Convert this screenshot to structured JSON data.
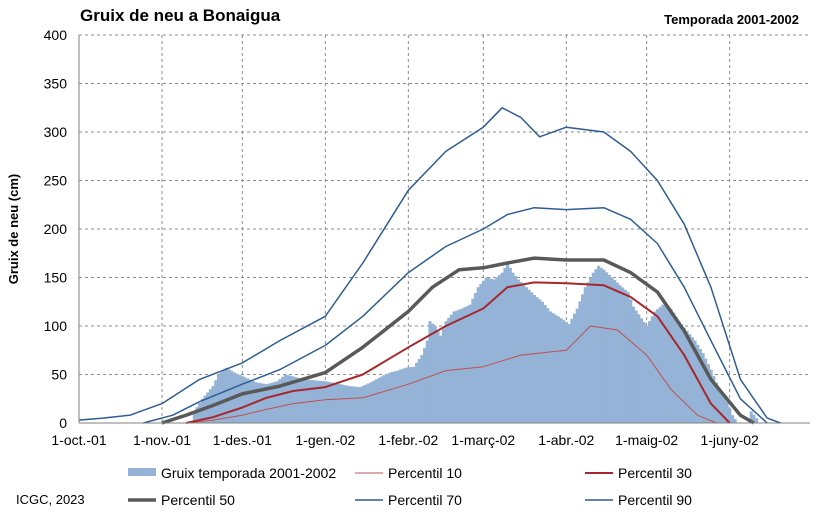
{
  "header": {
    "title": "Gruix de neu a Bonaigua",
    "season": "Temporada 2001-2002",
    "credit": "ICGC, 2023"
  },
  "chart_data": {
    "type": "area",
    "title": "Gruix de neu a Bonaigua",
    "subtitle": "Temporada 2001-2002",
    "ylabel": "Gruix de neu (cm)",
    "xlabel": "",
    "ylim": [
      0,
      400
    ],
    "yticks": [
      0,
      50,
      100,
      150,
      200,
      250,
      300,
      350,
      400
    ],
    "xlim": [
      "2001-10-01",
      "2002-07-01"
    ],
    "xticks": [
      {
        "date": "2001-10-01",
        "label": "1-oct.-01"
      },
      {
        "date": "2001-11-01",
        "label": "1-nov.-01"
      },
      {
        "date": "2001-12-01",
        "label": "1-des.-01"
      },
      {
        "date": "2002-01-01",
        "label": "1-gen.-02"
      },
      {
        "date": "2002-02-01",
        "label": "1-febr.-02"
      },
      {
        "date": "2002-03-01",
        "label": "1-març-02"
      },
      {
        "date": "2002-04-01",
        "label": "1-abr.-02"
      },
      {
        "date": "2002-05-01",
        "label": "1-maig-02"
      },
      {
        "date": "2002-06-01",
        "label": "1-juny-02"
      }
    ],
    "grid": true,
    "legend_position": "bottom",
    "series": [
      {
        "name": "Gruix temporada 2001-2002",
        "kind": "bars",
        "color": "#95b3d7",
        "points": [
          [
            "2001-11-12",
            0
          ],
          [
            "2001-11-13",
            12
          ],
          [
            "2001-11-16",
            25
          ],
          [
            "2001-11-20",
            38
          ],
          [
            "2001-11-22",
            50
          ],
          [
            "2001-11-25",
            57
          ],
          [
            "2001-11-28",
            52
          ],
          [
            "2001-12-02",
            47
          ],
          [
            "2001-12-06",
            42
          ],
          [
            "2001-12-10",
            40
          ],
          [
            "2001-12-14",
            43
          ],
          [
            "2001-12-17",
            50
          ],
          [
            "2001-12-20",
            48
          ],
          [
            "2001-12-24",
            45
          ],
          [
            "2001-12-28",
            44
          ],
          [
            "2002-01-01",
            43
          ],
          [
            "2002-01-05",
            41
          ],
          [
            "2002-01-10",
            38
          ],
          [
            "2002-01-14",
            37
          ],
          [
            "2002-01-18",
            42
          ],
          [
            "2002-01-22",
            48
          ],
          [
            "2002-01-25",
            52
          ],
          [
            "2002-01-28",
            54
          ],
          [
            "2002-01-31",
            57
          ],
          [
            "2002-02-03",
            58
          ],
          [
            "2002-02-06",
            70
          ],
          [
            "2002-02-08",
            85
          ],
          [
            "2002-02-09",
            105
          ],
          [
            "2002-02-11",
            100
          ],
          [
            "2002-02-13",
            90
          ],
          [
            "2002-02-15",
            105
          ],
          [
            "2002-02-18",
            115
          ],
          [
            "2002-02-21",
            118
          ],
          [
            "2002-02-24",
            122
          ],
          [
            "2002-02-27",
            140
          ],
          [
            "2002-03-02",
            150
          ],
          [
            "2002-03-05",
            148
          ],
          [
            "2002-03-08",
            155
          ],
          [
            "2002-03-10",
            165
          ],
          [
            "2002-03-12",
            155
          ],
          [
            "2002-03-14",
            148
          ],
          [
            "2002-03-17",
            140
          ],
          [
            "2002-03-20",
            132
          ],
          [
            "2002-03-23",
            125
          ],
          [
            "2002-03-26",
            115
          ],
          [
            "2002-03-30",
            108
          ],
          [
            "2002-04-02",
            102
          ],
          [
            "2002-04-05",
            118
          ],
          [
            "2002-04-08",
            140
          ],
          [
            "2002-04-11",
            155
          ],
          [
            "2002-04-13",
            162
          ],
          [
            "2002-04-15",
            158
          ],
          [
            "2002-04-18",
            150
          ],
          [
            "2002-04-21",
            142
          ],
          [
            "2002-04-24",
            135
          ],
          [
            "2002-04-26",
            120
          ],
          [
            "2002-04-28",
            112
          ],
          [
            "2002-05-01",
            100
          ],
          [
            "2002-05-04",
            115
          ],
          [
            "2002-05-07",
            122
          ],
          [
            "2002-05-10",
            118
          ],
          [
            "2002-05-13",
            105
          ],
          [
            "2002-05-16",
            95
          ],
          [
            "2002-05-19",
            85
          ],
          [
            "2002-05-22",
            72
          ],
          [
            "2002-05-25",
            55
          ],
          [
            "2002-05-28",
            35
          ],
          [
            "2002-05-31",
            22
          ],
          [
            "2002-06-02",
            8
          ],
          [
            "2002-06-04",
            0
          ],
          [
            "2002-06-08",
            0
          ],
          [
            "2002-06-09",
            12
          ],
          [
            "2002-06-11",
            5
          ],
          [
            "2002-06-12",
            0
          ]
        ]
      },
      {
        "name": "Percentil 10",
        "kind": "line",
        "color": "#c0504d",
        "width": 1,
        "points": [
          [
            "2001-11-10",
            0
          ],
          [
            "2001-11-20",
            3
          ],
          [
            "2001-12-01",
            8
          ],
          [
            "2001-12-10",
            14
          ],
          [
            "2001-12-20",
            20
          ],
          [
            "2002-01-01",
            24
          ],
          [
            "2002-01-15",
            26
          ],
          [
            "2002-02-01",
            40
          ],
          [
            "2002-02-15",
            54
          ],
          [
            "2002-03-01",
            58
          ],
          [
            "2002-03-15",
            70
          ],
          [
            "2002-04-01",
            75
          ],
          [
            "2002-04-10",
            100
          ],
          [
            "2002-04-20",
            96
          ],
          [
            "2002-05-01",
            70
          ],
          [
            "2002-05-10",
            35
          ],
          [
            "2002-05-20",
            8
          ],
          [
            "2002-05-27",
            0
          ]
        ]
      },
      {
        "name": "Percentil 30",
        "kind": "line",
        "color": "#a6272d",
        "width": 2,
        "points": [
          [
            "2001-11-10",
            0
          ],
          [
            "2001-11-20",
            6
          ],
          [
            "2001-12-01",
            16
          ],
          [
            "2001-12-10",
            26
          ],
          [
            "2001-12-20",
            33
          ],
          [
            "2002-01-01",
            37
          ],
          [
            "2002-01-15",
            50
          ],
          [
            "2002-02-01",
            78
          ],
          [
            "2002-02-15",
            100
          ],
          [
            "2002-03-01",
            118
          ],
          [
            "2002-03-10",
            140
          ],
          [
            "2002-03-20",
            145
          ],
          [
            "2002-04-01",
            144
          ],
          [
            "2002-04-15",
            142
          ],
          [
            "2002-04-25",
            130
          ],
          [
            "2002-05-05",
            110
          ],
          [
            "2002-05-15",
            70
          ],
          [
            "2002-05-25",
            20
          ],
          [
            "2002-06-01",
            0
          ]
        ]
      },
      {
        "name": "Percentil 50",
        "kind": "line",
        "color": "#595959",
        "width": 3.5,
        "points": [
          [
            "2001-11-01",
            0
          ],
          [
            "2001-11-10",
            8
          ],
          [
            "2001-11-20",
            18
          ],
          [
            "2001-12-01",
            30
          ],
          [
            "2001-12-15",
            38
          ],
          [
            "2002-01-01",
            52
          ],
          [
            "2002-01-15",
            78
          ],
          [
            "2002-02-01",
            115
          ],
          [
            "2002-02-10",
            140
          ],
          [
            "2002-02-20",
            158
          ],
          [
            "2002-03-01",
            160
          ],
          [
            "2002-03-10",
            165
          ],
          [
            "2002-03-20",
            170
          ],
          [
            "2002-04-01",
            168
          ],
          [
            "2002-04-15",
            168
          ],
          [
            "2002-04-25",
            155
          ],
          [
            "2002-05-05",
            135
          ],
          [
            "2002-05-15",
            95
          ],
          [
            "2002-05-25",
            45
          ],
          [
            "2002-06-05",
            8
          ],
          [
            "2002-06-10",
            0
          ]
        ]
      },
      {
        "name": "Percentil 70",
        "kind": "line",
        "color": "#2e5d94",
        "width": 1.5,
        "points": [
          [
            "2001-10-25",
            0
          ],
          [
            "2001-11-05",
            8
          ],
          [
            "2001-11-15",
            22
          ],
          [
            "2001-12-01",
            40
          ],
          [
            "2001-12-15",
            55
          ],
          [
            "2002-01-01",
            80
          ],
          [
            "2002-01-15",
            110
          ],
          [
            "2002-02-01",
            155
          ],
          [
            "2002-02-15",
            182
          ],
          [
            "2002-03-01",
            200
          ],
          [
            "2002-03-10",
            215
          ],
          [
            "2002-03-20",
            222
          ],
          [
            "2002-04-01",
            220
          ],
          [
            "2002-04-15",
            222
          ],
          [
            "2002-04-25",
            210
          ],
          [
            "2002-05-05",
            185
          ],
          [
            "2002-05-15",
            140
          ],
          [
            "2002-05-25",
            85
          ],
          [
            "2002-06-05",
            25
          ],
          [
            "2002-06-15",
            0
          ]
        ]
      },
      {
        "name": "Percentil 90",
        "kind": "line",
        "color": "#2e5d94",
        "width": 1.5,
        "points": [
          [
            "2001-10-01",
            3
          ],
          [
            "2001-10-10",
            5
          ],
          [
            "2001-10-20",
            8
          ],
          [
            "2001-11-01",
            20
          ],
          [
            "2001-11-15",
            45
          ],
          [
            "2001-12-01",
            62
          ],
          [
            "2001-12-15",
            85
          ],
          [
            "2002-01-01",
            110
          ],
          [
            "2002-01-15",
            165
          ],
          [
            "2002-02-01",
            240
          ],
          [
            "2002-02-15",
            280
          ],
          [
            "2002-03-01",
            305
          ],
          [
            "2002-03-08",
            325
          ],
          [
            "2002-03-15",
            315
          ],
          [
            "2002-03-22",
            295
          ],
          [
            "2002-04-01",
            305
          ],
          [
            "2002-04-15",
            300
          ],
          [
            "2002-04-25",
            280
          ],
          [
            "2002-05-05",
            250
          ],
          [
            "2002-05-15",
            205
          ],
          [
            "2002-05-25",
            140
          ],
          [
            "2002-06-05",
            45
          ],
          [
            "2002-06-15",
            5
          ],
          [
            "2002-06-20",
            0
          ]
        ]
      }
    ]
  }
}
